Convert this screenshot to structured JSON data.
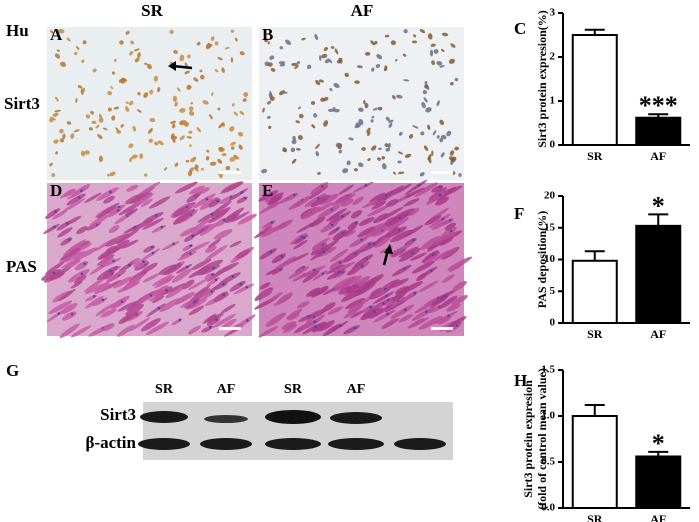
{
  "figure": {
    "species": "Hu",
    "columns": [
      "SR",
      "AF"
    ],
    "rows": [
      "Sirt3",
      "PAS"
    ],
    "image_letters": [
      "A",
      "B",
      "D",
      "E"
    ],
    "blot": {
      "letter": "G",
      "lanes": [
        "SR",
        "AF",
        "SR",
        "AF"
      ],
      "proteins": [
        "Sirt3",
        "β-actin"
      ]
    }
  },
  "chart_data": [
    {
      "type": "bar",
      "letter": "C",
      "ylabel": [
        "Sirt3 protein expresion(%)"
      ],
      "categories": [
        "SR",
        "AF"
      ],
      "values": [
        2.5,
        0.62
      ],
      "errors": [
        0.12,
        0.08
      ],
      "significance": [
        null,
        "***"
      ],
      "colors": [
        "#ffffff",
        "#000000"
      ],
      "ylim": [
        0,
        3
      ],
      "yticks": [
        0,
        1,
        2,
        3
      ]
    },
    {
      "type": "bar",
      "letter": "F",
      "ylabel": [
        "PAS deposition(%)"
      ],
      "categories": [
        "SR",
        "AF"
      ],
      "values": [
        9.8,
        15.3
      ],
      "errors": [
        1.5,
        1.8
      ],
      "significance": [
        null,
        "*"
      ],
      "colors": [
        "#ffffff",
        "#000000"
      ],
      "ylim": [
        0,
        20
      ],
      "yticks": [
        0,
        5,
        10,
        15,
        20
      ]
    },
    {
      "type": "bar",
      "letter": "H",
      "ylabel": [
        "Sirt3 protein expresion",
        "(fold of control mean value)"
      ],
      "categories": [
        "SR",
        "AF"
      ],
      "values": [
        1.0,
        0.56
      ],
      "errors": [
        0.12,
        0.05
      ],
      "significance": [
        null,
        "*"
      ],
      "colors": [
        "#ffffff",
        "#000000"
      ],
      "ylim": [
        0,
        1.5
      ],
      "yticks": [
        {
          "value": 0,
          "label": "0.0"
        },
        {
          "value": 0.5,
          "label": "0.5"
        },
        {
          "value": 1,
          "label": "1.0"
        },
        {
          "value": 1.5,
          "label": "1.5"
        }
      ]
    }
  ]
}
